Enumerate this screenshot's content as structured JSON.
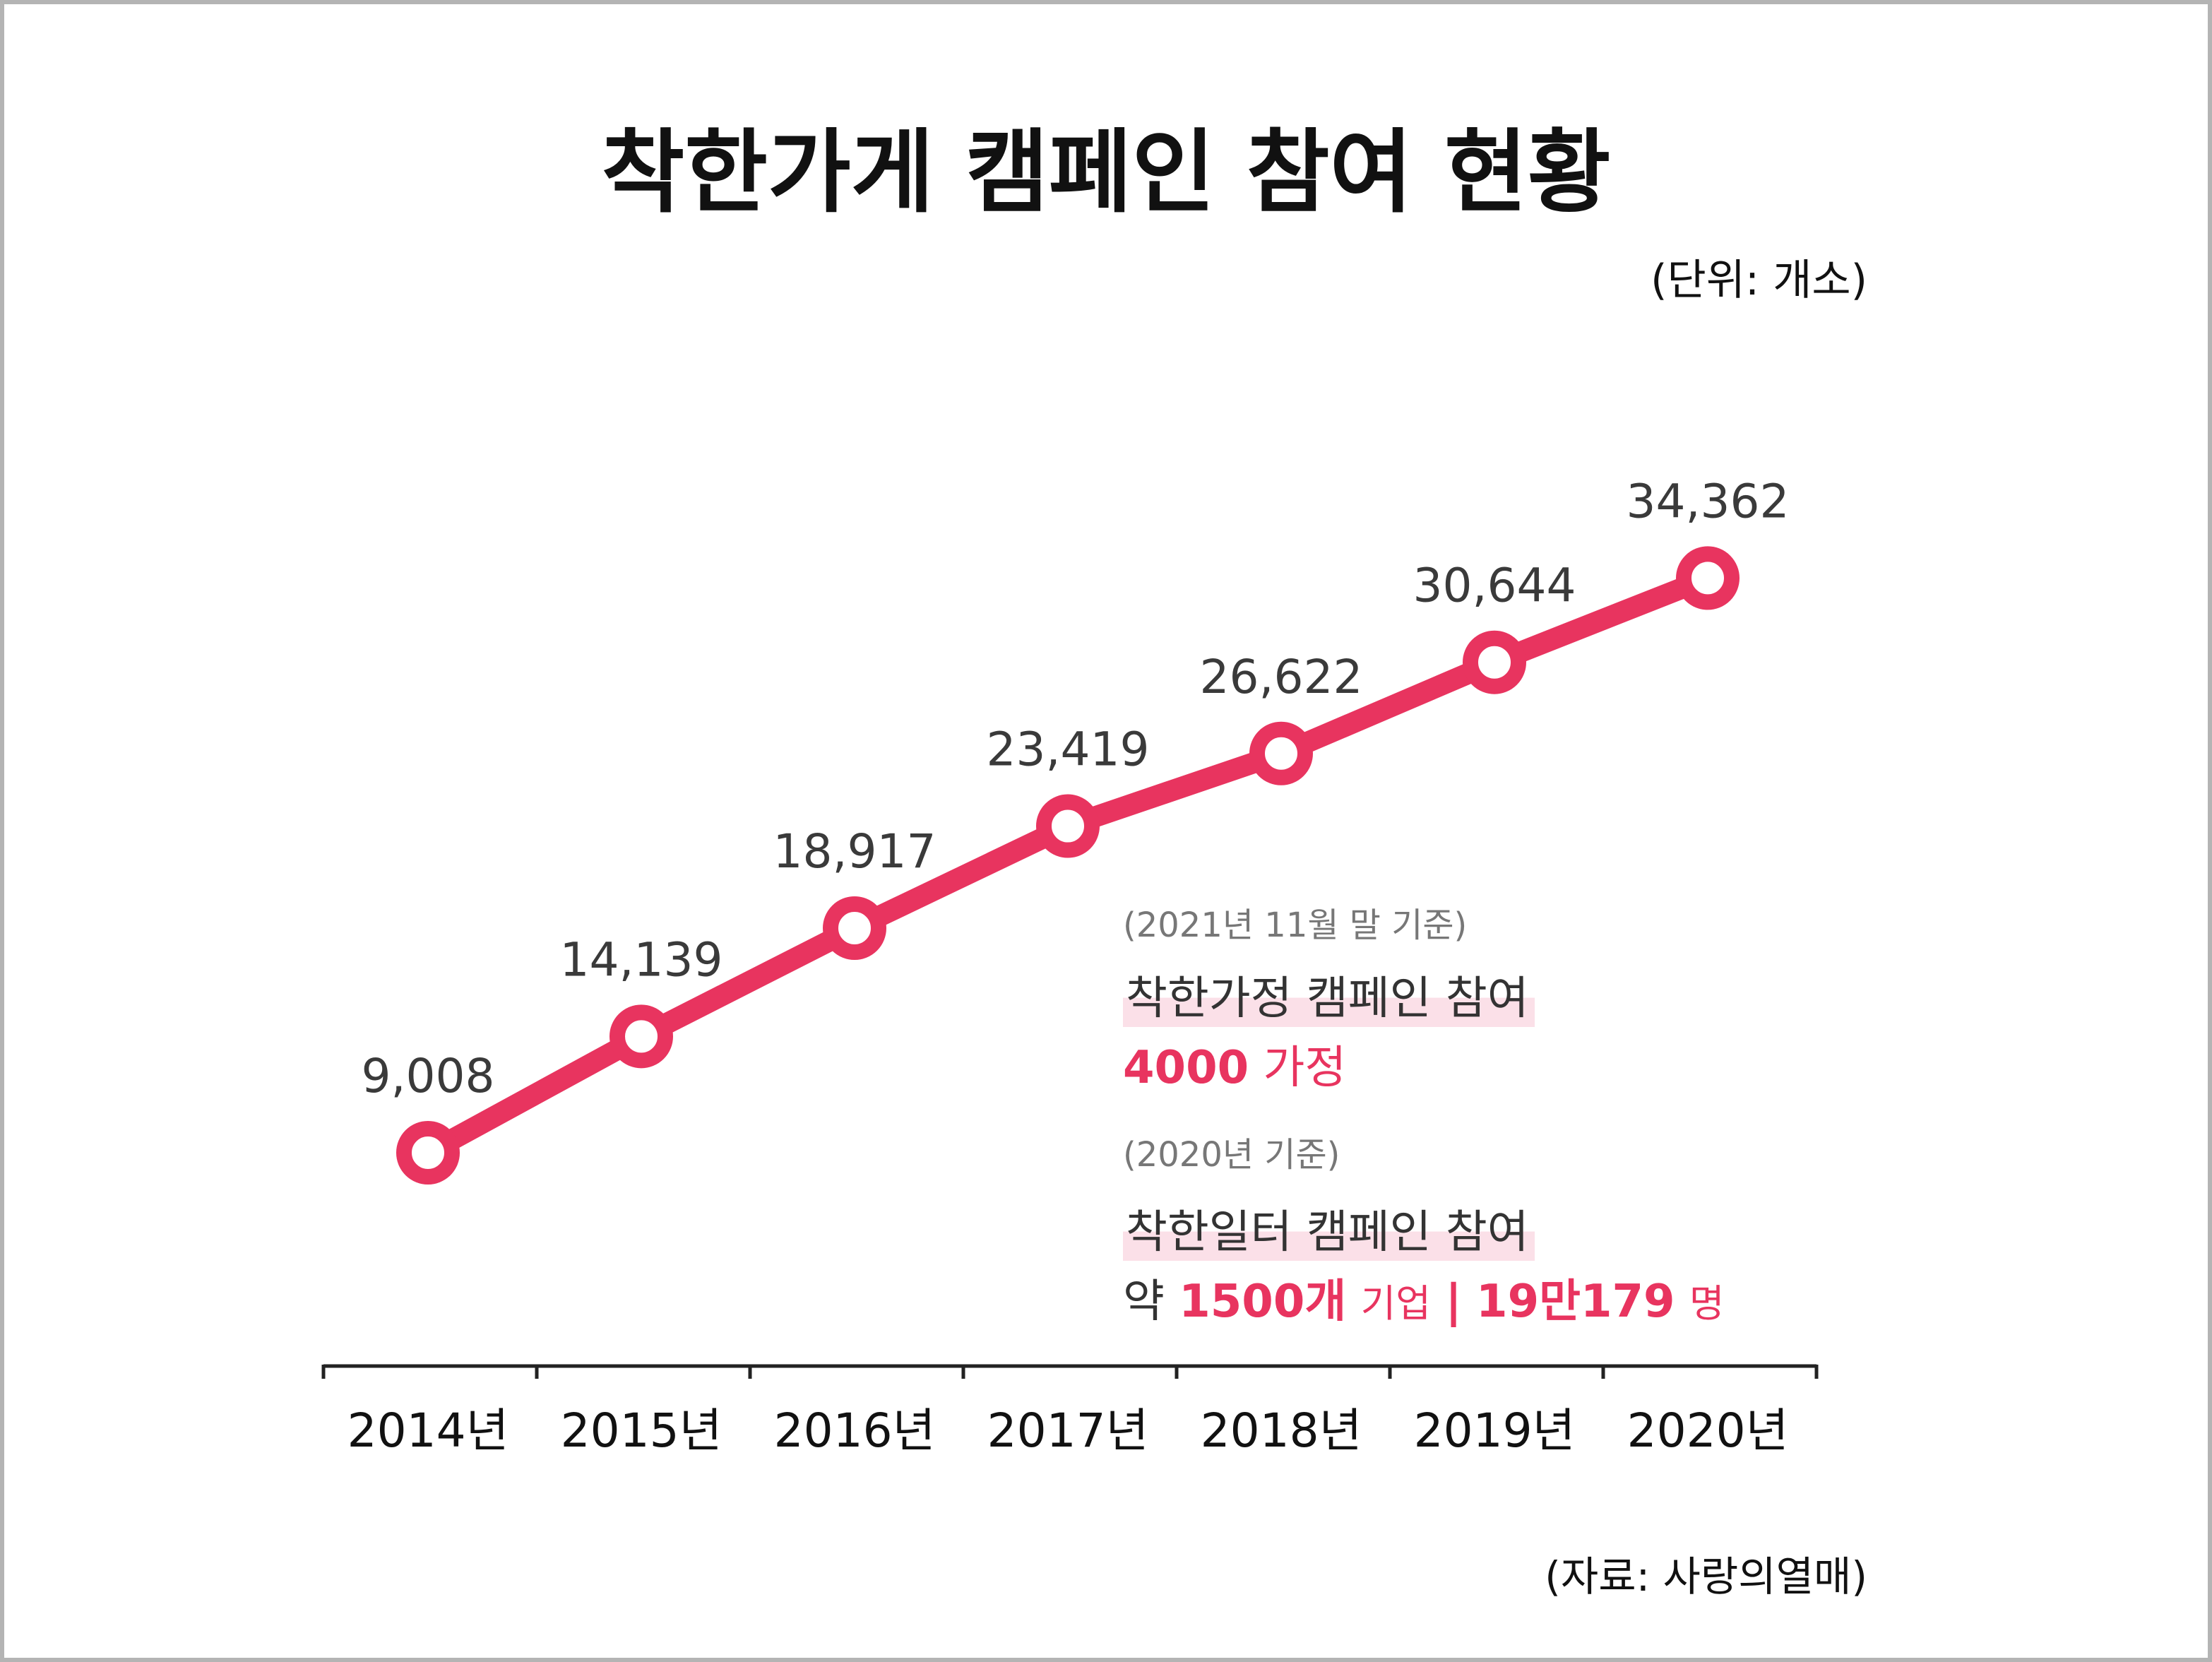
{
  "title": "착한가게 캠페인 참여 현황",
  "unit": "(단위: 개소)",
  "source": "(자료: 사랑의열매)",
  "colors": {
    "line": "#e8345f",
    "highlight": "#fbe0e8"
  },
  "chart_data": {
    "type": "line",
    "title": "착한가게 캠페인 참여 현황",
    "categories": [
      "2014년",
      "2015년",
      "2016년",
      "2017년",
      "2018년",
      "2019년",
      "2020년"
    ],
    "values": [
      9008,
      14139,
      18917,
      23419,
      26622,
      30644,
      34362
    ],
    "value_labels": [
      "9,008",
      "14,139",
      "18,917",
      "23,419",
      "26,622",
      "30,644",
      "34,362"
    ],
    "xlabel": "",
    "ylabel": "",
    "grid": false,
    "legend": "none"
  },
  "notes": {
    "family": {
      "date": "(2021년 11월 말 기준)",
      "heading": "착한가정 캠페인 참여",
      "count": "4000",
      "count_unit": "가정"
    },
    "workplace": {
      "date": "(2020년 기준)",
      "heading": "착한일터 캠페인 참여",
      "prefix": "약",
      "companies": "1500개",
      "companies_unit": "기업",
      "separator": "|",
      "people": "19만179",
      "people_unit": "명"
    }
  }
}
